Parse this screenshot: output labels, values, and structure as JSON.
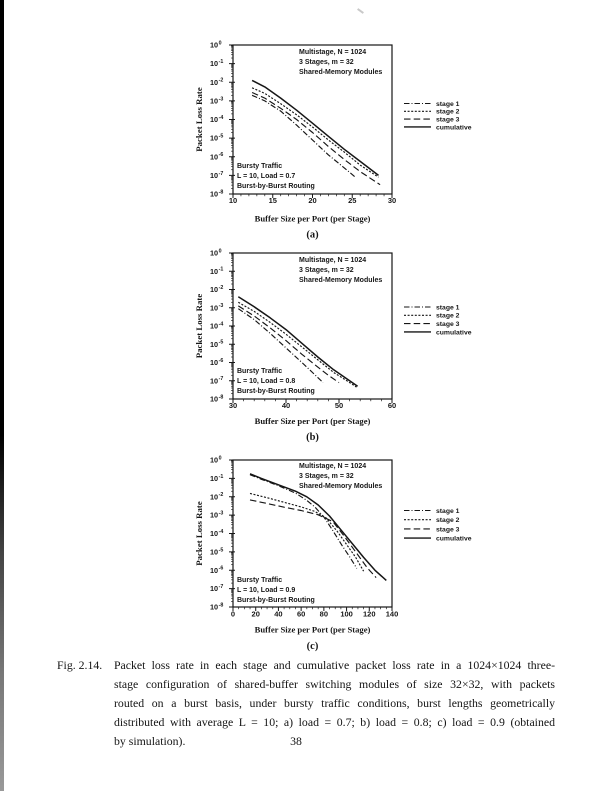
{
  "page_number": "38",
  "caption": {
    "prefix": "Fig. 2.14.",
    "lines": [
      "Packet loss rate in each stage and cumulative packet loss rate in a 1024×1024 three-",
      "stage configuration of shared-buffer switching modules of size 32×32, with packets",
      "routed on a burst basis, under bursty traffic conditions, burst lengths geometrically",
      "distributed with average L = 10; a) load = 0.7; b) load = 0.8; c) load = 0.9 (obtained",
      "by simulation)."
    ]
  },
  "chart_data": [
    {
      "id": "a",
      "type": "line",
      "sublabel": "(a)",
      "title_lines": [
        "Multistage, N = 1024",
        "3 Stages, m = 32",
        "Shared-Memory Modules"
      ],
      "condition_lines": [
        "Bursty Traffic",
        "L = 10, Load = 0.7",
        "Burst-by-Burst Routing"
      ],
      "xlabel": "Buffer Size per Port (per Stage)",
      "ylabel": "Packet Loss Rate",
      "xlim": [
        10,
        30
      ],
      "xticks": [
        10,
        15,
        20,
        25,
        30
      ],
      "xminor_step": 1,
      "ylog": true,
      "ylim_exp": [
        0,
        -8
      ],
      "legend_position": "right-outside",
      "legend": [
        "stage 1",
        "stage 2",
        "stage 3",
        "cumulative"
      ],
      "series": [
        {
          "name": "stage 1",
          "line_style": "dash-dot",
          "points": [
            [
              12.4,
              -2.7
            ],
            [
              14,
              -3.0
            ],
            [
              16,
              -3.55
            ],
            [
              18,
              -4.3
            ],
            [
              20,
              -5.1
            ],
            [
              22,
              -5.9
            ],
            [
              24,
              -6.6
            ],
            [
              25.4,
              -7.1
            ]
          ]
        },
        {
          "name": "stage 2",
          "line_style": "dotted",
          "points": [
            [
              12.4,
              -2.3
            ],
            [
              14,
              -2.6
            ],
            [
              16,
              -3.15
            ],
            [
              18,
              -3.75
            ],
            [
              20,
              -4.4
            ],
            [
              22,
              -5.1
            ],
            [
              24,
              -5.75
            ],
            [
              26,
              -6.45
            ],
            [
              28.3,
              -7.1
            ]
          ]
        },
        {
          "name": "stage 3",
          "line_style": "dashed",
          "points": [
            [
              12.4,
              -2.55
            ],
            [
              14,
              -2.85
            ],
            [
              16,
              -3.4
            ],
            [
              18,
              -4.0
            ],
            [
              20,
              -4.7
            ],
            [
              22,
              -5.45
            ],
            [
              24,
              -6.15
            ],
            [
              26,
              -6.8
            ],
            [
              28.5,
              -7.5
            ]
          ]
        },
        {
          "name": "cumulative",
          "line_style": "solid",
          "points": [
            [
              12.4,
              -1.9
            ],
            [
              14,
              -2.25
            ],
            [
              16,
              -2.85
            ],
            [
              18,
              -3.5
            ],
            [
              20,
              -4.2
            ],
            [
              22,
              -4.9
            ],
            [
              24,
              -5.6
            ],
            [
              26,
              -6.25
            ],
            [
              28.3,
              -7.0
            ]
          ]
        }
      ]
    },
    {
      "id": "b",
      "type": "line",
      "sublabel": "(b)",
      "title_lines": [
        "Multistage, N = 1024",
        "3 Stages, m = 32",
        "Shared-Memory Modules"
      ],
      "condition_lines": [
        "Bursty Traffic",
        "L = 10, Load = 0.8",
        "Burst-by-Burst Routing"
      ],
      "xlabel": "Buffer Size per Port (per Stage)",
      "ylabel": "Packet Loss Rate",
      "xlim": [
        30,
        60
      ],
      "xticks": [
        30,
        40,
        50,
        60
      ],
      "xminor_step": 2,
      "ylog": true,
      "ylim_exp": [
        0,
        -8
      ],
      "legend_position": "right-outside",
      "legend": [
        "stage 1",
        "stage 2",
        "stage 3",
        "cumulative"
      ],
      "series": [
        {
          "name": "stage 1",
          "line_style": "dash-dot",
          "points": [
            [
              31,
              -3.05
            ],
            [
              34,
              -3.65
            ],
            [
              37,
              -4.4
            ],
            [
              40,
              -5.2
            ],
            [
              43,
              -6.0
            ],
            [
              45,
              -6.55
            ],
            [
              47,
              -7.1
            ]
          ]
        },
        {
          "name": "stage 2",
          "line_style": "dotted",
          "points": [
            [
              31,
              -2.7
            ],
            [
              34,
              -3.2
            ],
            [
              37,
              -3.8
            ],
            [
              40,
              -4.45
            ],
            [
              43,
              -5.15
            ],
            [
              46,
              -5.85
            ],
            [
              49,
              -6.55
            ],
            [
              51.5,
              -7.0
            ],
            [
              53.3,
              -7.35
            ]
          ]
        },
        {
          "name": "stage 3",
          "line_style": "dashed",
          "points": [
            [
              31,
              -2.9
            ],
            [
              34,
              -3.45
            ],
            [
              37,
              -4.1
            ],
            [
              40,
              -4.8
            ],
            [
              43,
              -5.55
            ],
            [
              46,
              -6.25
            ],
            [
              48,
              -6.7
            ],
            [
              50,
              -7.1
            ]
          ]
        },
        {
          "name": "cumulative",
          "line_style": "solid",
          "points": [
            [
              31,
              -2.4
            ],
            [
              34,
              -2.95
            ],
            [
              37,
              -3.55
            ],
            [
              40,
              -4.2
            ],
            [
              43,
              -4.95
            ],
            [
              46,
              -5.7
            ],
            [
              49,
              -6.4
            ],
            [
              51.5,
              -6.9
            ],
            [
              53.5,
              -7.3
            ]
          ]
        }
      ]
    },
    {
      "id": "c",
      "type": "line",
      "sublabel": "(c)",
      "title_lines": [
        "Multistage, N = 1024",
        "3 Stages, m = 32",
        "Shared-Memory Modules"
      ],
      "condition_lines": [
        "Bursty Traffic",
        "L = 10, Load = 0.9",
        "Burst-by-Burst Routing"
      ],
      "xlabel": "Buffer Size per Port (per Stage)",
      "ylabel": "Packet Loss Rate",
      "xlim": [
        0,
        140
      ],
      "xticks": [
        0,
        20,
        40,
        60,
        80,
        100,
        120,
        140
      ],
      "xminor_step": 5,
      "ylog": true,
      "ylim_exp": [
        0,
        -8
      ],
      "legend_position": "right-outside",
      "legend": [
        "stage 1",
        "stage 2",
        "stage 3",
        "cumulative"
      ],
      "series": [
        {
          "name": "stage 1",
          "line_style": "dash-dot",
          "points": [
            [
              15,
              -0.8
            ],
            [
              25,
              -1.05
            ],
            [
              40,
              -1.4
            ],
            [
              55,
              -1.8
            ],
            [
              65,
              -2.2
            ],
            [
              72,
              -2.55
            ],
            [
              80,
              -3.1
            ],
            [
              88,
              -3.85
            ],
            [
              96,
              -4.65
            ],
            [
              103,
              -5.3
            ],
            [
              109,
              -5.9
            ]
          ]
        },
        {
          "name": "stage 2",
          "line_style": "dotted",
          "points": [
            [
              15,
              -1.82
            ],
            [
              30,
              -2.05
            ],
            [
              45,
              -2.3
            ],
            [
              60,
              -2.55
            ],
            [
              72,
              -2.8
            ],
            [
              82,
              -3.15
            ],
            [
              92,
              -3.9
            ],
            [
              100,
              -4.6
            ],
            [
              108,
              -5.3
            ],
            [
              115,
              -6.05
            ]
          ]
        },
        {
          "name": "stage 3",
          "line_style": "dashed",
          "points": [
            [
              15,
              -2.17
            ],
            [
              30,
              -2.37
            ],
            [
              45,
              -2.57
            ],
            [
              60,
              -2.75
            ],
            [
              75,
              -2.98
            ],
            [
              88,
              -3.35
            ],
            [
              98,
              -4.15
            ],
            [
              108,
              -5.0
            ],
            [
              118,
              -5.85
            ],
            [
              126,
              -6.4
            ]
          ]
        },
        {
          "name": "cumulative",
          "line_style": "solid",
          "points": [
            [
              15,
              -0.75
            ],
            [
              25,
              -1.0
            ],
            [
              40,
              -1.35
            ],
            [
              55,
              -1.7
            ],
            [
              65,
              -2.0
            ],
            [
              75,
              -2.45
            ],
            [
              85,
              -3.05
            ],
            [
              95,
              -3.8
            ],
            [
              105,
              -4.55
            ],
            [
              115,
              -5.3
            ],
            [
              125,
              -6.0
            ],
            [
              135,
              -6.55
            ]
          ]
        }
      ]
    }
  ]
}
